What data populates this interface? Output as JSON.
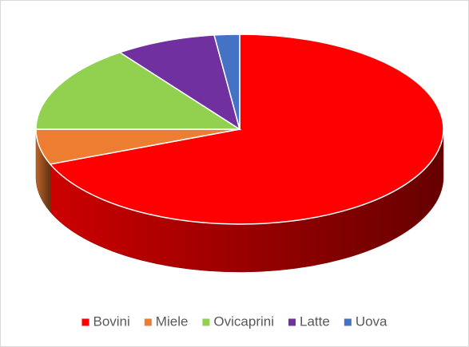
{
  "chart_data": {
    "type": "pie",
    "categories": [
      "Bovini",
      "Miele",
      "Ovicaprini",
      "Latte",
      "Uova"
    ],
    "values": [
      69,
      6,
      15,
      8,
      2
    ],
    "colors": [
      "#ff0000",
      "#ed7d31",
      "#92d050",
      "#7030a0",
      "#4472c4"
    ],
    "legend": "bottom"
  }
}
